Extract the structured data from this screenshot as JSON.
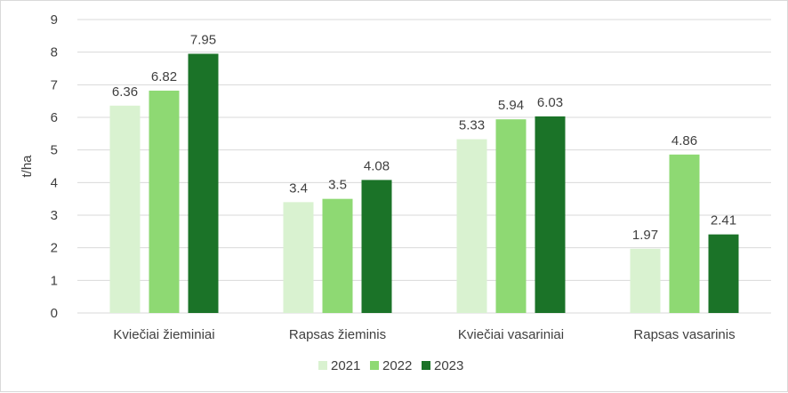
{
  "chart_data": {
    "type": "bar",
    "title": "",
    "xlabel": "",
    "ylabel": "t/ha",
    "ylim": [
      0,
      9
    ],
    "yticks": [
      0,
      1,
      2,
      3,
      4,
      5,
      6,
      7,
      8,
      9
    ],
    "grid": true,
    "legend_position": "bottom",
    "categories": [
      "Kviečiai žieminiai",
      "Rapsas žieminis",
      "Kviečiai vasariniai",
      "Rapsas vasarinis"
    ],
    "series": [
      {
        "name": "2021",
        "color": "#d9f2d0",
        "values": [
          6.36,
          3.4,
          5.33,
          1.97
        ],
        "labels": [
          "6.36",
          "3.4",
          "5.33",
          "1.97"
        ]
      },
      {
        "name": "2022",
        "color": "#8ed973",
        "values": [
          6.82,
          3.5,
          5.94,
          4.86
        ],
        "labels": [
          "6.82",
          "3.5",
          "5.94",
          "4.86"
        ]
      },
      {
        "name": "2023",
        "color": "#1b7328",
        "values": [
          7.95,
          4.08,
          6.03,
          2.41
        ],
        "labels": [
          "7.95",
          "4.08",
          "6.03",
          "2.41"
        ]
      }
    ]
  }
}
